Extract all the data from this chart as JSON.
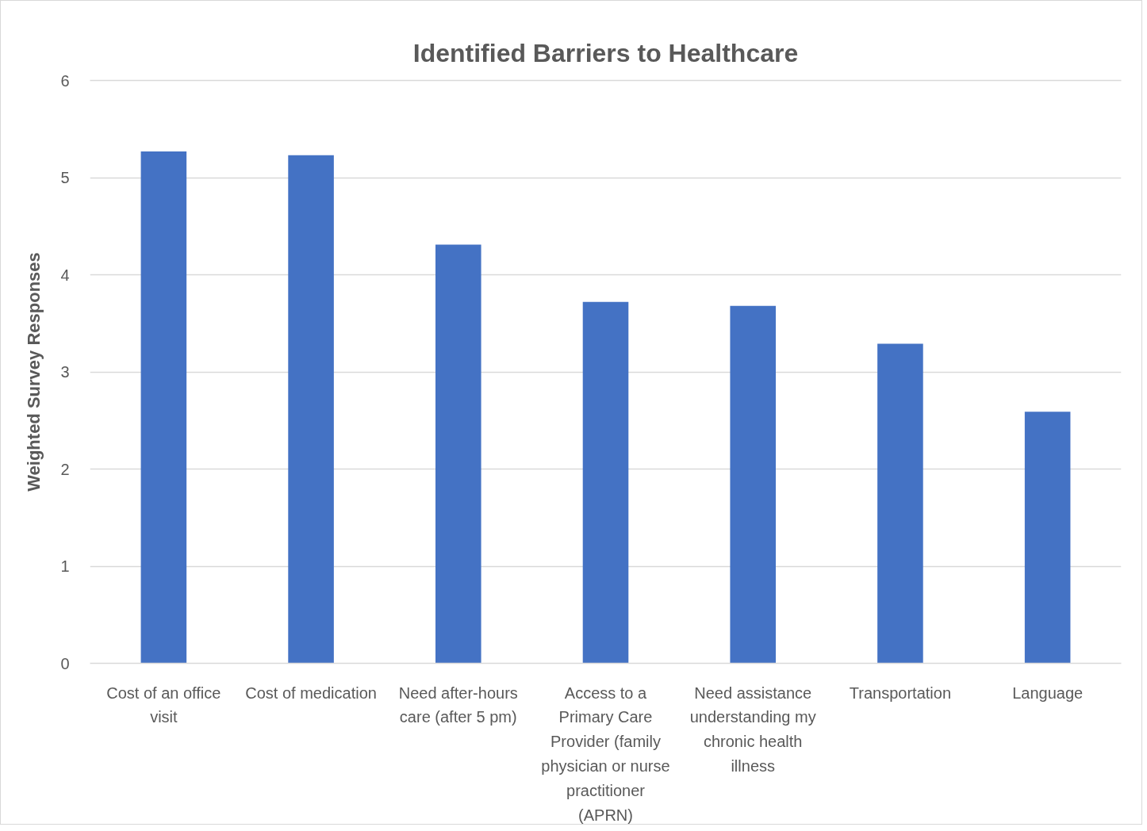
{
  "chart_data": {
    "type": "bar",
    "title": "Identified Barriers to Healthcare",
    "ylabel": "Weighted Survey Responses",
    "categories": [
      "Cost of an office visit",
      "Cost of medication",
      "Need after-hours care (after 5 pm)",
      "Access to a Primary Care Provider (family physician or nurse practitioner (APRN)",
      "Need assistance understanding my chronic health illness",
      "Transportation",
      "Language"
    ],
    "values": [
      5.27,
      5.23,
      4.31,
      3.72,
      3.68,
      3.29,
      2.59
    ],
    "color": "#4472c4",
    "ylim": [
      0,
      6
    ],
    "yticks": [
      0,
      1,
      2,
      3,
      4,
      5,
      6
    ],
    "grid": "y"
  }
}
